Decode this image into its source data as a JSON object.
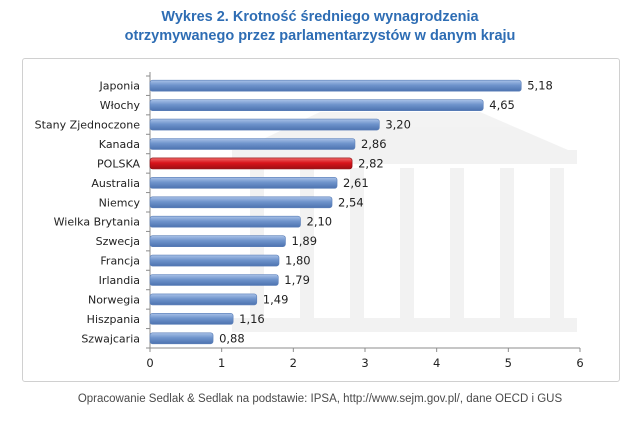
{
  "title_line1": "Wykres 2. Krotność średniego wynagrodzenia",
  "title_line2": "otrzymywanego przez parlamentarzystów w danym kraju",
  "source": "Opracowanie Sedlak & Sedlak na podstawie: IPSA, http://www.sejm.gov.pl/, dane OECD i GUS",
  "colors": {
    "bar": "#6f94cc",
    "highlight_bar": "#d9141b",
    "title": "#2e6db4"
  },
  "chart_data": {
    "type": "bar",
    "orientation": "horizontal",
    "categories": [
      "Japonia",
      "Włochy",
      "Stany Zjednoczone",
      "Kanada",
      "POLSKA",
      "Australia",
      "Niemcy",
      "Wielka Brytania",
      "Szwecja",
      "Francja",
      "Irlandia",
      "Norwegia",
      "Hiszpania",
      "Szwajcaria"
    ],
    "values": [
      5.18,
      4.65,
      3.2,
      2.86,
      2.82,
      2.61,
      2.54,
      2.1,
      1.89,
      1.8,
      1.79,
      1.49,
      1.16,
      0.88
    ],
    "value_labels": [
      "5,18",
      "4,65",
      "3,20",
      "2,86",
      "2,82",
      "2,61",
      "2,54",
      "2,10",
      "1,89",
      "1,80",
      "1,79",
      "1,49",
      "1,16",
      "0,88"
    ],
    "highlight": "POLSKA",
    "xlim": [
      0,
      6
    ],
    "xticks": [
      "0",
      "1",
      "2",
      "3",
      "4",
      "5",
      "6"
    ],
    "grid": false
  }
}
